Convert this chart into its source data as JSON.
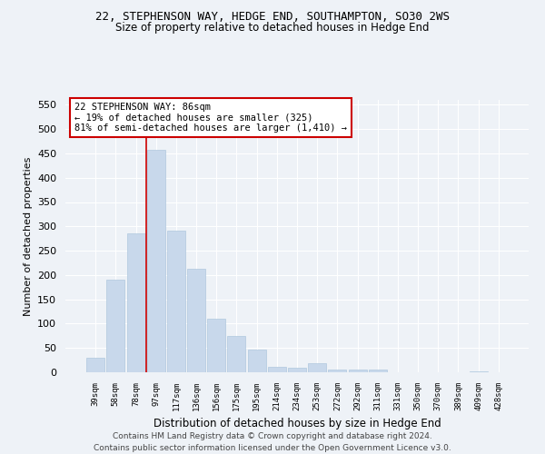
{
  "title_line1": "22, STEPHENSON WAY, HEDGE END, SOUTHAMPTON, SO30 2WS",
  "title_line2": "Size of property relative to detached houses in Hedge End",
  "xlabel": "Distribution of detached houses by size in Hedge End",
  "ylabel": "Number of detached properties",
  "bar_color": "#c8d8eb",
  "bar_edge_color": "#b0c8de",
  "categories": [
    "39sqm",
    "58sqm",
    "78sqm",
    "97sqm",
    "117sqm",
    "136sqm",
    "156sqm",
    "175sqm",
    "195sqm",
    "214sqm",
    "234sqm",
    "253sqm",
    "272sqm",
    "292sqm",
    "311sqm",
    "331sqm",
    "350sqm",
    "370sqm",
    "389sqm",
    "409sqm",
    "428sqm"
  ],
  "values": [
    30,
    190,
    285,
    457,
    291,
    212,
    110,
    74,
    46,
    11,
    10,
    19,
    6,
    6,
    5,
    0,
    0,
    0,
    0,
    2,
    0
  ],
  "ylim": [
    0,
    560
  ],
  "yticks": [
    0,
    50,
    100,
    150,
    200,
    250,
    300,
    350,
    400,
    450,
    500,
    550
  ],
  "property_line_x": 2.5,
  "annotation_line1": "22 STEPHENSON WAY: 86sqm",
  "annotation_line2": "← 19% of detached houses are smaller (325)",
  "annotation_line3": "81% of semi-detached houses are larger (1,410) →",
  "annotation_box_color": "#ffffff",
  "annotation_box_edge_color": "#cc0000",
  "footer_line1": "Contains HM Land Registry data © Crown copyright and database right 2024.",
  "footer_line2": "Contains public sector information licensed under the Open Government Licence v3.0.",
  "background_color": "#eef2f7",
  "grid_color": "#ffffff",
  "red_line_color": "#cc0000",
  "title1_fontsize": 9,
  "title2_fontsize": 8.5,
  "xlabel_fontsize": 8.5,
  "ylabel_fontsize": 8,
  "annotation_fontsize": 7.5,
  "footer_fontsize": 6.5
}
